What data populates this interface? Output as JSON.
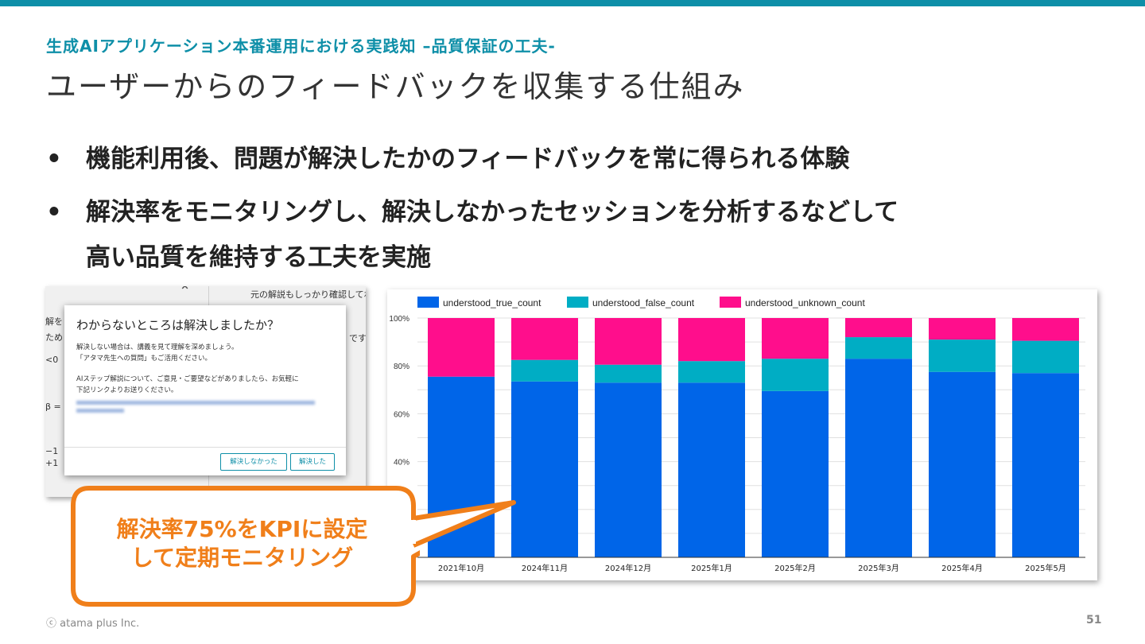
{
  "header": {
    "subtitle": "生成AIアプリケーション本番運用における実践知 –品質保証の工夫-",
    "title": "ユーザーからのフィードバックを収集する仕組み"
  },
  "bullets": [
    {
      "dot": "•",
      "line1": "機能利用後、問題が解決したかのフィードバックを常に得られる体験",
      "line2": ""
    },
    {
      "dot": "•",
      "line1": "解決率をモニタリングし、解決しなかったセッションを分析するなどして",
      "line2": "高い品質を維持する工夫を実施"
    }
  ],
  "screenshot": {
    "bg_top": "元の解説もしっかり確認してね。",
    "bg_left": [
      "解を",
      "ため",
      "<0",
      "β =",
      "−1",
      "+1"
    ],
    "bg_right": "です。お",
    "dialog": {
      "question": "わからないところは解決しましたか？",
      "para1": [
        "解決しない場合は、講義を見て理解を深めましょう。",
        "「アタマ先生への質問」もご活用ください。"
      ],
      "para2": [
        "AIステップ解説について、ご意見・ご要望などがありましたら、お気軽に",
        "下記リンクよりお送りください。"
      ],
      "btn_not_solved": "解決しなかった",
      "btn_solved": "解決した"
    }
  },
  "callout": {
    "line1": "解決率75%をKPIに設定",
    "line2": "して定期モニタリング"
  },
  "footer": {
    "copyright": "ⓒ atama plus Inc.",
    "page_number": "51"
  },
  "colors": {
    "accent": "#0e8fa8",
    "true_series": "#0065e8",
    "false_series": "#00adc4",
    "unknown_series": "#ff0e8c",
    "callout": "#f07f1a"
  },
  "chart_data": {
    "type": "bar",
    "stacked": true,
    "categories": [
      "2021年10月",
      "2024年11月",
      "2024年12月",
      "2025年1月",
      "2025年2月",
      "2025年3月",
      "2025年4月",
      "2025年5月"
    ],
    "series": [
      {
        "name": "understood_true_count",
        "values": [
          75.5,
          73.5,
          73,
          73,
          69.5,
          83,
          77.5,
          77
        ],
        "color": "#0065e8"
      },
      {
        "name": "understood_false_count",
        "values": [
          0,
          9,
          7.5,
          9,
          13.5,
          9,
          13.5,
          13.5
        ],
        "color": "#00adc4"
      },
      {
        "name": "understood_unknown_count",
        "values": [
          24.5,
          17.5,
          19.5,
          18,
          17,
          8,
          9,
          9.5
        ],
        "color": "#ff0e8c"
      }
    ],
    "y_ticks": [
      "100%",
      "80%",
      "60%",
      "40%"
    ],
    "ylim": [
      0,
      100
    ],
    "legend_position": "top",
    "grid": true
  }
}
